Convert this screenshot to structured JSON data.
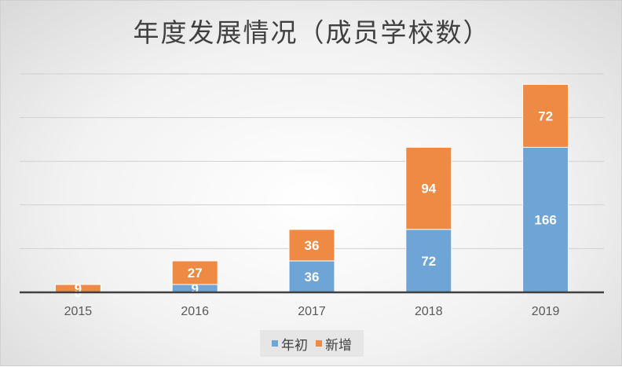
{
  "chart_data": {
    "type": "bar",
    "stacked": true,
    "title": "年度发展情况（成员学校数）",
    "categories": [
      "2015",
      "2016",
      "2017",
      "2018",
      "2019"
    ],
    "series": [
      {
        "name": "年初",
        "values": [
          0,
          9,
          36,
          72,
          166
        ],
        "color": "#6fa4d6"
      },
      {
        "name": "新增",
        "values": [
          9,
          27,
          36,
          94,
          72
        ],
        "color": "#ee8a44"
      }
    ],
    "ylim": [
      0,
      250
    ],
    "grid": true,
    "legend": "bottom"
  }
}
